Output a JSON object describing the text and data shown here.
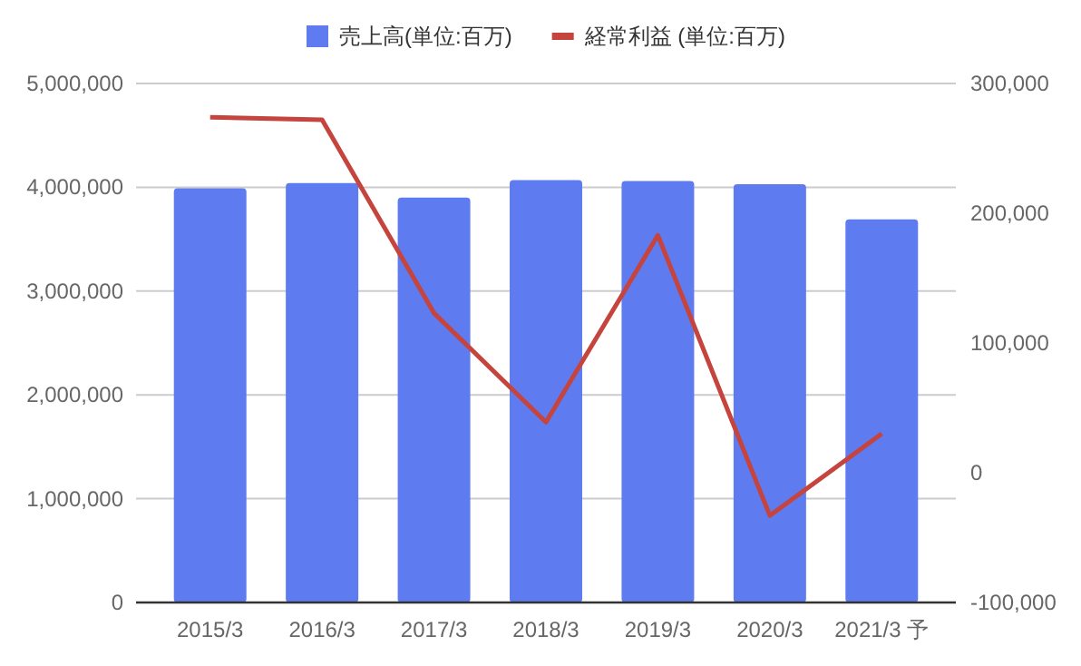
{
  "chart_data": {
    "type": "bar",
    "categories": [
      "2015/3",
      "2016/3",
      "2017/3",
      "2018/3",
      "2019/3",
      "2020/3",
      "2021/3 予"
    ],
    "series": [
      {
        "name": "売上高(単位:百万)",
        "color": "#5f7bf0",
        "values": [
          3990000,
          4040000,
          3900000,
          4070000,
          4060000,
          4030000,
          3690000
        ]
      },
      {
        "name": "経常利益 (単位:百万)",
        "type": "line",
        "axis": "y2",
        "color": "#c5443e",
        "values": [
          274000,
          272000,
          123000,
          39000,
          183000,
          -33000,
          30000
        ]
      }
    ],
    "ylim": [
      0,
      5000000
    ],
    "yticks": [
      {
        "value": 0,
        "label": "0"
      },
      {
        "value": 1000000,
        "label": "1,000,000"
      },
      {
        "value": 2000000,
        "label": "2,000,000"
      },
      {
        "value": 3000000,
        "label": "3,000,000"
      },
      {
        "value": 4000000,
        "label": "4,000,000"
      },
      {
        "value": 5000000,
        "label": "5,000,000"
      }
    ],
    "y2lim": [
      -100000,
      300000
    ],
    "y2ticks": [
      {
        "value": -100000,
        "label": "-100,000"
      },
      {
        "value": 0,
        "label": "0"
      },
      {
        "value": 100000,
        "label": "100,000"
      },
      {
        "value": 200000,
        "label": "200,000"
      },
      {
        "value": 300000,
        "label": "300,000"
      }
    ],
    "grid": "y",
    "legend": "top"
  }
}
